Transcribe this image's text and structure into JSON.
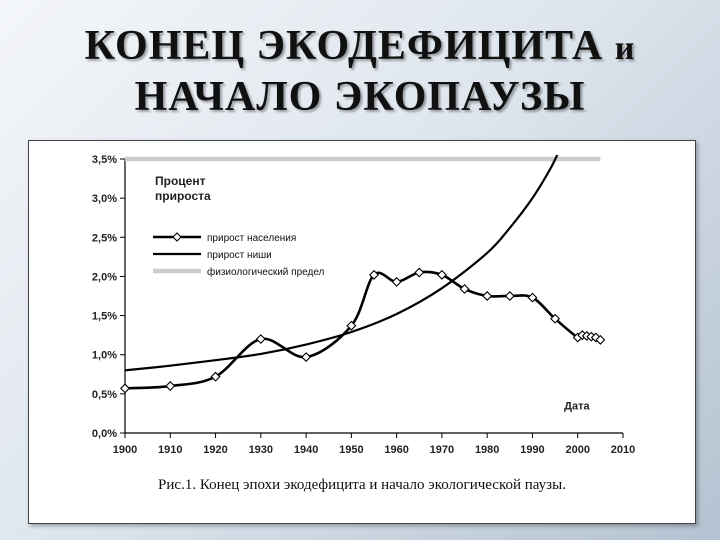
{
  "slide": {
    "title_line1": "КОНЕЦ ЭКОДЕФИЦИТА",
    "title_conj": "и",
    "title_line2": "НАЧАЛО ЭКОПАУЗЫ"
  },
  "caption": "Рис.1. Конец эпохи экодефицита и начало экологической паузы.",
  "chart_data": {
    "type": "line",
    "title": "",
    "ylabel": "Процент прироста",
    "ylabel_lines": [
      "Процент",
      "прироста"
    ],
    "xlabel": "Дата",
    "xlim": [
      1900,
      2010
    ],
    "ylim": [
      0,
      3.5
    ],
    "x_ticks": [
      1900,
      1910,
      1920,
      1930,
      1940,
      1950,
      1960,
      1970,
      1980,
      1990,
      2000,
      2010
    ],
    "y_ticks": [
      0,
      0.5,
      1.0,
      1.5,
      2.0,
      2.5,
      3.0,
      3.5
    ],
    "y_tick_labels": [
      "0,0%",
      "0,5%",
      "1,0%",
      "1,5%",
      "2,0%",
      "2,5%",
      "3,0%",
      "3,5%"
    ],
    "grid": false,
    "legend_position": "top-left",
    "series": [
      {
        "name": "прирост населения",
        "color": "#000000",
        "markers": "diamond",
        "points": [
          [
            1900,
            0.57
          ],
          [
            1910,
            0.6
          ],
          [
            1920,
            0.72
          ],
          [
            1930,
            1.2
          ],
          [
            1940,
            0.97
          ],
          [
            1950,
            1.37
          ],
          [
            1955,
            2.02
          ],
          [
            1960,
            1.93
          ],
          [
            1965,
            2.05
          ],
          [
            1970,
            2.02
          ],
          [
            1975,
            1.84
          ],
          [
            1980,
            1.75
          ],
          [
            1985,
            1.75
          ],
          [
            1990,
            1.73
          ],
          [
            1995,
            1.46
          ],
          [
            2000,
            1.22
          ],
          [
            2001,
            1.25
          ],
          [
            2002,
            1.24
          ],
          [
            2003,
            1.23
          ],
          [
            2004,
            1.22
          ],
          [
            2005,
            1.19
          ]
        ]
      },
      {
        "name": "прирост ниши",
        "color": "#000000",
        "markers": "none",
        "points": [
          [
            1900,
            0.8
          ],
          [
            1910,
            0.86
          ],
          [
            1920,
            0.93
          ],
          [
            1930,
            1.01
          ],
          [
            1940,
            1.13
          ],
          [
            1950,
            1.29
          ],
          [
            1960,
            1.52
          ],
          [
            1970,
            1.85
          ],
          [
            1980,
            2.3
          ],
          [
            1985,
            2.62
          ],
          [
            1990,
            3.0
          ],
          [
            1994,
            3.38
          ],
          [
            1996,
            3.62
          ]
        ]
      },
      {
        "name": "физиологический предел",
        "color": "#cccccc",
        "markers": "none",
        "points": [
          [
            1900,
            3.5
          ],
          [
            2005,
            3.5
          ]
        ]
      }
    ]
  }
}
